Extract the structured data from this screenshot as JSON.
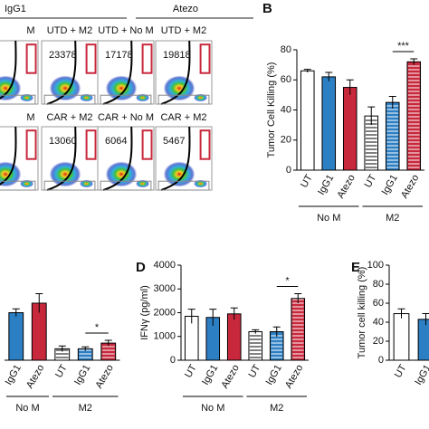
{
  "panel_a": {
    "headers": [
      "IgG1",
      "Atezo"
    ],
    "rows": [
      [
        {
          "label": "M"
        },
        {
          "label": "UTD + M2",
          "count": 23378
        },
        {
          "label": "UTD + No M",
          "count": 17178
        },
        {
          "label": "UTD + M2",
          "count": 19818
        }
      ],
      [
        {
          "label": "M"
        },
        {
          "label": "CAR + M2",
          "count": 13060
        },
        {
          "label": "CAR + No M",
          "count": 6064
        },
        {
          "label": "CAR + M2",
          "count": 5467
        }
      ]
    ]
  },
  "chart_data": [
    {
      "type": "bar",
      "label": "B",
      "y_label": "Tumor Cell Killing (%)",
      "categories": [
        "UT",
        "IgG1",
        "Atezo",
        "UT",
        "IgG1",
        "Atezo"
      ],
      "values": [
        66,
        62,
        55,
        36,
        45,
        72
      ],
      "errors": [
        1,
        3,
        5,
        6,
        4,
        2
      ],
      "colors": [
        "#ffffff",
        "#2d7fc4",
        "#c8283c",
        "#ffffff",
        "#2d7fc4",
        "#c8283c"
      ],
      "hatched": [
        false,
        false,
        false,
        true,
        true,
        true
      ],
      "groups": [
        "No M",
        "M2"
      ],
      "significance": "***",
      "ylim": [
        0,
        80
      ],
      "yticks": [
        0,
        20,
        40,
        60,
        80
      ]
    },
    {
      "type": "bar",
      "categories": [
        "IgG1",
        "Atezo",
        "UT",
        "IgG1",
        "Atezo"
      ],
      "values": [
        50,
        60,
        12,
        12,
        18
      ],
      "errors": [
        4,
        10,
        3,
        2,
        3
      ],
      "colors": [
        "#2d7fc4",
        "#c8283c",
        "#ffffff",
        "#2d7fc4",
        "#c8283c"
      ],
      "hatched": [
        false,
        false,
        true,
        true,
        true
      ],
      "groups": [
        "No M",
        "M2"
      ],
      "significance": "*",
      "ylim": [
        0,
        100
      ]
    },
    {
      "type": "bar",
      "label": "D",
      "y_label": "IFNγ (pg/ml)",
      "categories": [
        "UT",
        "IgG1",
        "Atezo",
        "UT",
        "IgG1",
        "Atezo"
      ],
      "values": [
        1850,
        1800,
        1950,
        1200,
        1200,
        2600
      ],
      "errors": [
        300,
        350,
        250,
        80,
        200,
        200
      ],
      "colors": [
        "#ffffff",
        "#2d7fc4",
        "#c8283c",
        "#ffffff",
        "#2d7fc4",
        "#c8283c"
      ],
      "hatched": [
        false,
        false,
        false,
        true,
        true,
        true
      ],
      "groups": [
        "No M",
        "M2"
      ],
      "significance": "*",
      "ylim": [
        0,
        4000
      ],
      "yticks": [
        0,
        1000,
        2000,
        3000,
        4000
      ]
    },
    {
      "type": "bar",
      "label": "E",
      "y_label": "Tumor cell killing (%)",
      "categories": [
        "UT",
        "IgG1"
      ],
      "values": [
        49,
        43
      ],
      "errors": [
        5,
        6
      ],
      "colors": [
        "#ffffff",
        "#2d7fc4"
      ],
      "hatched": [
        false,
        false
      ],
      "ylim": [
        0,
        100
      ],
      "yticks": [
        0,
        20,
        40,
        60,
        80,
        100
      ]
    }
  ]
}
